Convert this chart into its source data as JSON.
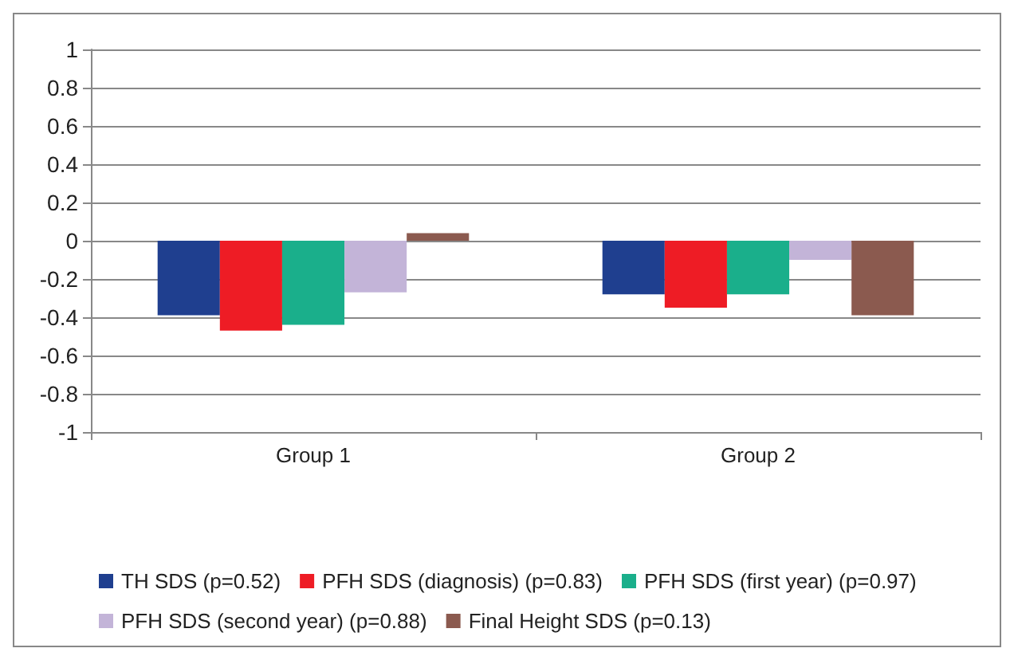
{
  "chart_data": {
    "type": "bar",
    "categories": [
      "Group 1",
      "Group 2"
    ],
    "series": [
      {
        "name": "TH SDS (p=0.52)",
        "color": "#1f3f8f",
        "values": [
          -0.39,
          -0.28
        ]
      },
      {
        "name": "PFH SDS (diagnosis) (p=0.83)",
        "color": "#ee1c25",
        "values": [
          -0.47,
          -0.35
        ]
      },
      {
        "name": "PFH SDS (first year) (p=0.97)",
        "color": "#1aaf8b",
        "values": [
          -0.44,
          -0.28
        ]
      },
      {
        "name": "PFH SDS (second year) (p=0.88)",
        "color": "#c3b4d8",
        "values": [
          -0.27,
          -0.1
        ]
      },
      {
        "name": "Final Height SDS (p=0.13)",
        "color": "#8b5a4f",
        "values": [
          0.04,
          -0.39
        ]
      }
    ],
    "ylim": [
      -1,
      1
    ],
    "yticks": [
      -1,
      -0.8,
      -0.6,
      -0.4,
      -0.2,
      0,
      0.2,
      0.4,
      0.6,
      0.8,
      1
    ],
    "grid": "y",
    "legend": "bottom"
  }
}
